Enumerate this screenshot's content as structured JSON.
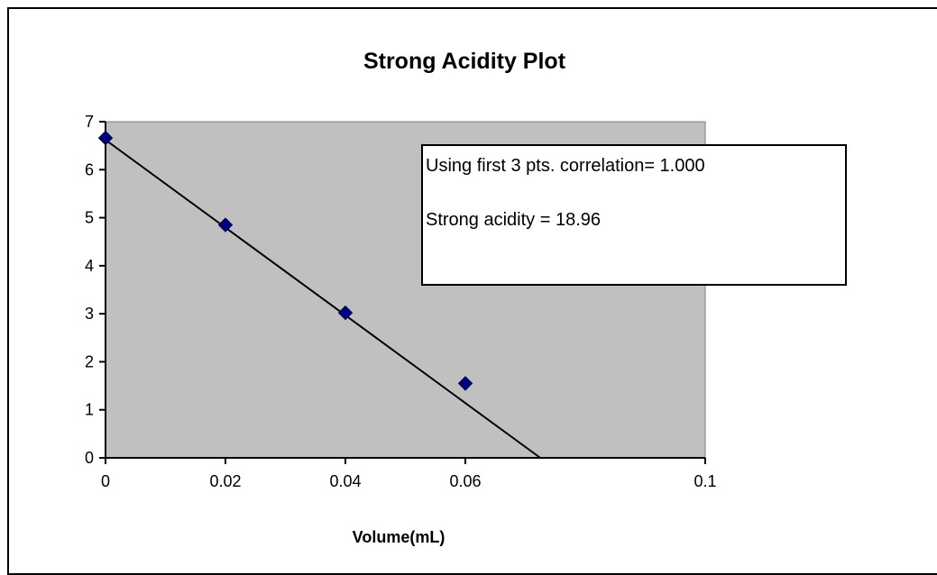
{
  "chart_data": {
    "type": "scatter",
    "title": "Strong Acidity Plot",
    "xlabel": "Volume(mL)",
    "ylabel": "",
    "xlim": [
      0,
      0.1
    ],
    "ylim": [
      0,
      7
    ],
    "x_ticks": [
      "0",
      "0.02",
      "0.04",
      "0.06",
      "0.1"
    ],
    "y_ticks": [
      "0",
      "1",
      "2",
      "3",
      "4",
      "5",
      "6",
      "7"
    ],
    "grid": false,
    "legend": "none",
    "series": [
      {
        "points": [
          {
            "x": 0.0,
            "y": 6.66
          },
          {
            "x": 0.02,
            "y": 4.85
          },
          {
            "x": 0.04,
            "y": 3.02
          },
          {
            "x": 0.06,
            "y": 1.55
          }
        ]
      }
    ],
    "trendline": {
      "x_start": 0.0,
      "y_start": 6.62,
      "x_end": 0.0725,
      "y_end": 0.0
    },
    "annotation": {
      "line1": "Using  first 3 pts. correlation= 1.000",
      "line2": "Strong acidity = 18.96"
    },
    "colors": {
      "plot_area": "#c0c0c0",
      "marker": "#000080",
      "trendline": "#000000",
      "frame": "#000000"
    }
  }
}
